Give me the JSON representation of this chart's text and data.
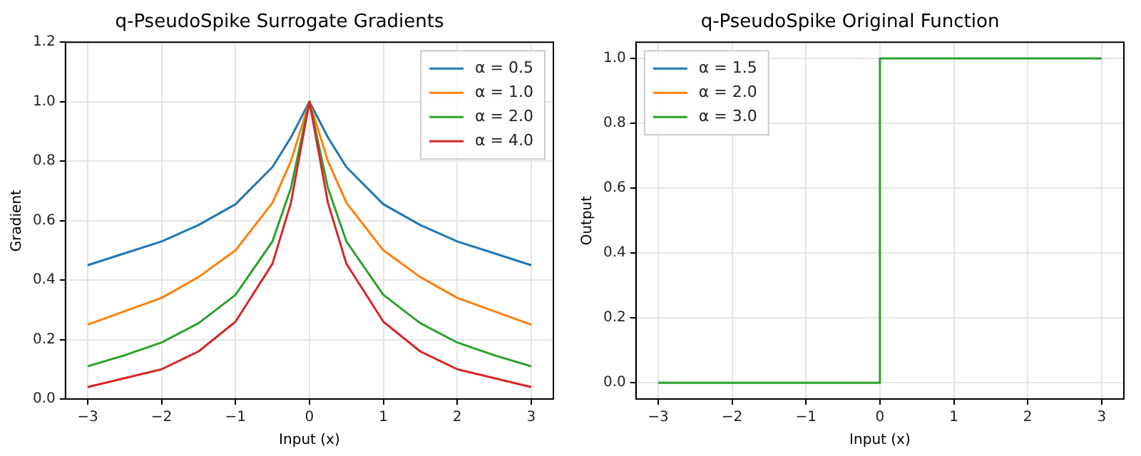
{
  "chart_data": [
    {
      "type": "line",
      "title": "q-PseudoSpike Surrogate Gradients",
      "xlabel": "Input (x)",
      "ylabel": "Gradient",
      "xlim": [
        -3.3,
        3.3
      ],
      "ylim": [
        0,
        1.2
      ],
      "xticks": [
        {
          "value": -3,
          "label": "−3"
        },
        {
          "value": -2,
          "label": "−2"
        },
        {
          "value": -1,
          "label": "−1"
        },
        0,
        1,
        2,
        3
      ],
      "yticks": [
        {
          "value": 0,
          "label": "0.0"
        },
        0.2,
        0.4,
        0.6,
        0.8,
        {
          "value": 1,
          "label": "1.0"
        },
        {
          "value": 1.2,
          "label": "1.2"
        }
      ],
      "grid": true,
      "legend": "top right",
      "x": [
        -3,
        -2.5,
        -2,
        -1.5,
        -1,
        -0.5,
        -0.25,
        0,
        0.25,
        0.5,
        1,
        1.5,
        2,
        2.5,
        3
      ],
      "series": [
        {
          "name": "α = 0.5",
          "color": "#1f77b4",
          "values": [
            0.45,
            0.49,
            0.53,
            0.585,
            0.655,
            0.78,
            0.88,
            1,
            0.88,
            0.78,
            0.655,
            0.585,
            0.53,
            0.49,
            0.45
          ]
        },
        {
          "name": "α = 1.0",
          "color": "#ff7f0e",
          "values": [
            0.25,
            0.295,
            0.34,
            0.41,
            0.5,
            0.66,
            0.8,
            1,
            0.8,
            0.66,
            0.5,
            0.41,
            0.34,
            0.295,
            0.25
          ]
        },
        {
          "name": "α = 2.0",
          "color": "#2ca02c",
          "values": [
            0.11,
            0.147,
            0.19,
            0.255,
            0.35,
            0.53,
            0.71,
            1,
            0.71,
            0.53,
            0.35,
            0.255,
            0.19,
            0.147,
            0.11
          ]
        },
        {
          "name": "α = 4.0",
          "color": "#d62728",
          "values": [
            0.04,
            0.07,
            0.1,
            0.16,
            0.26,
            0.455,
            0.66,
            1,
            0.66,
            0.455,
            0.26,
            0.16,
            0.1,
            0.07,
            0.04
          ]
        }
      ]
    },
    {
      "type": "line",
      "title": "q-PseudoSpike Original Function",
      "xlabel": "Input (x)",
      "ylabel": "Output",
      "xlim": [
        -3.3,
        3.3
      ],
      "ylim": [
        -0.05,
        1.05
      ],
      "xticks": [
        {
          "value": -3,
          "label": "−3"
        },
        {
          "value": -2,
          "label": "−2"
        },
        {
          "value": -1,
          "label": "−1"
        },
        0,
        1,
        2,
        3
      ],
      "yticks": [
        {
          "value": 0,
          "label": "0.0"
        },
        0.2,
        0.4,
        0.6,
        0.8,
        {
          "value": 1,
          "label": "1.0"
        }
      ],
      "grid": true,
      "legend": "top left",
      "x": [
        -3,
        0,
        0,
        3
      ],
      "series": [
        {
          "name": "α = 1.5",
          "color": "#1f77b4",
          "values": [
            null,
            null,
            null,
            null
          ]
        },
        {
          "name": "α = 2.0",
          "color": "#ff7f0e",
          "values": [
            null,
            null,
            null,
            null
          ]
        },
        {
          "name": "α = 3.0",
          "color": "#2ca02c",
          "values": [
            0,
            0,
            1,
            1
          ]
        }
      ]
    }
  ]
}
